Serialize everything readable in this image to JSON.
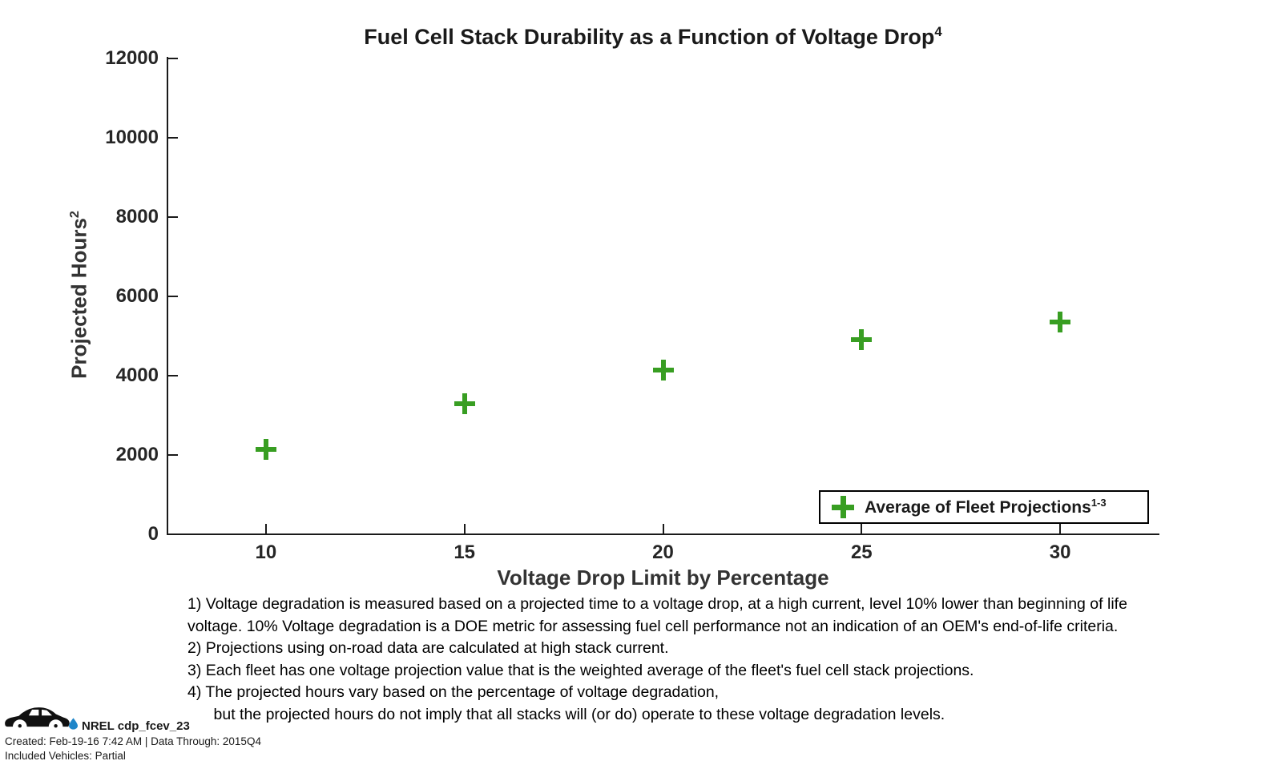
{
  "chart": {
    "title": "Fuel Cell Stack Durability as a Function of Voltage Drop",
    "title_sup": "4",
    "y_axis": {
      "label": "Projected Hours",
      "label_sup": "2"
    },
    "x_axis": {
      "label": "Voltage Drop Limit by Percentage"
    },
    "legend": {
      "label": "Average of Fleet Projections",
      "sup": "1-3"
    },
    "marker_color": "#389e22"
  },
  "chart_data": {
    "type": "scatter",
    "title": "Fuel Cell Stack Durability as a Function of Voltage Drop",
    "xlabel": "Voltage Drop Limit by Percentage",
    "ylabel": "Projected Hours",
    "x": [
      10,
      15,
      20,
      25,
      30
    ],
    "y": [
      2150,
      3300,
      4150,
      4900,
      5350
    ],
    "series": [
      {
        "name": "Average of Fleet Projections",
        "marker": "plus",
        "color": "#389e22",
        "x": [
          10,
          15,
          20,
          25,
          30
        ],
        "y": [
          2150,
          3300,
          4150,
          4900,
          5350
        ]
      }
    ],
    "x_ticks": [
      10,
      15,
      20,
      25,
      30
    ],
    "y_ticks": [
      0,
      2000,
      4000,
      6000,
      8000,
      10000,
      12000
    ],
    "xlim": [
      7.5,
      32.5
    ],
    "ylim": [
      0,
      12000
    ],
    "grid": false,
    "legend_position": "inside lower right"
  },
  "footnotes": [
    "1) Voltage degradation is measured based on a projected time to a voltage drop, at a high current, level 10% lower than beginning of life",
    "voltage. 10% Voltage degradation is a DOE metric for assessing fuel cell performance not an indication of an OEM's end-of-life criteria.",
    "2) Projections using on-road data are calculated at high stack current.",
    "3) Each fleet has one voltage projection value that is the weighted average of the fleet's fuel cell stack projections.",
    "4) The projected hours vary based on the percentage of voltage degradation,",
    "      but the projected hours do not imply that all stacks will (or do) operate to these voltage degradation levels."
  ],
  "footer": {
    "logo_text": "NREL cdp_fcev_23",
    "created": "Created: Feb-19-16  7:42 AM | Data Through: 2015Q4",
    "included": "Included Vehicles: Partial"
  }
}
